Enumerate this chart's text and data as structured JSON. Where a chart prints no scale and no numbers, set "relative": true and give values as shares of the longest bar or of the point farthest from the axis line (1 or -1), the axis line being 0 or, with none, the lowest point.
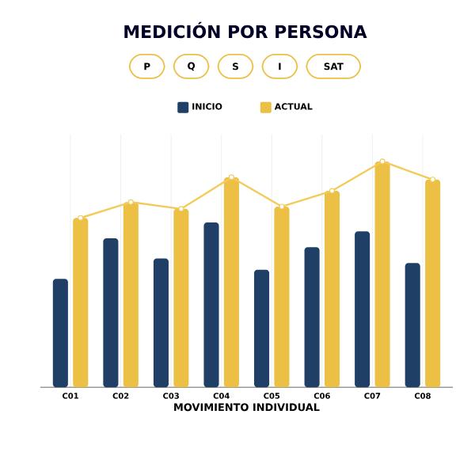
{
  "chart_data": {
    "type": "bar",
    "title": "MEDICIÓN POR PERSONA",
    "xlabel": "MOVIMIENTO INDIVIDUAL",
    "annotations": [
      "P",
      "Q",
      "S",
      "I",
      "SAT"
    ],
    "categories": [
      "C01",
      "C02",
      "C03",
      "C04",
      "C05",
      "C06",
      "C07",
      "C08"
    ],
    "relative": true,
    "grid": true,
    "legend": "top",
    "series": [
      {
        "name": "INICIO",
        "color": "#1f3f66",
        "values": [
          0.48,
          0.66,
          0.57,
          0.73,
          0.52,
          0.62,
          0.69,
          0.55
        ]
      },
      {
        "name": "ACTUAL",
        "color": "#ecbf45",
        "values": [
          0.75,
          0.82,
          0.79,
          0.93,
          0.8,
          0.87,
          1,
          0.92
        ]
      },
      {
        "type": "line",
        "color": "#f3cb5c",
        "marker": "circle",
        "values": [
          0.75,
          0.82,
          0.79,
          0.93,
          0.8,
          0.87,
          1,
          0.92
        ]
      }
    ]
  }
}
